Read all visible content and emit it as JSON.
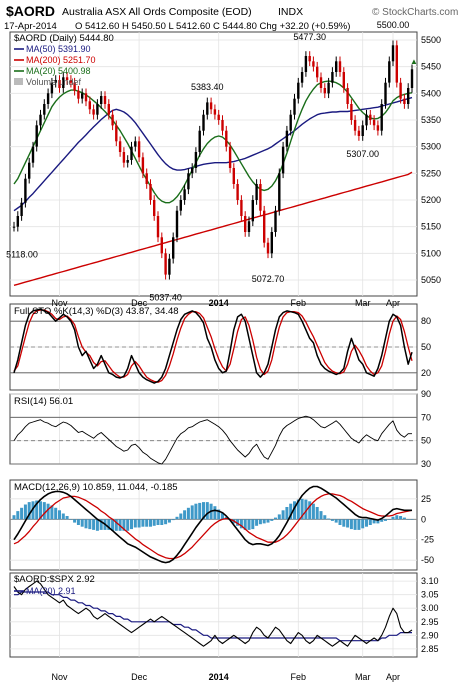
{
  "header": {
    "symbol": "$AORD",
    "name": "Australia ASX All Ords Composite (EOD)",
    "exchange": "INDX",
    "date": "17-Apr-2014",
    "ohlc": "O 5412.60  H 5450.50  L 5412.60  C 5444.80  Chg +32.20 (+0.59%)",
    "credit": "© StockCharts.com",
    "up_arrow": "▲"
  },
  "colors": {
    "price_up": "#000000",
    "price_down": "#cc0000",
    "ma50": "#1a1a80",
    "ma200": "#cc0000",
    "ma20": "#1a6e1a",
    "stoch_k": "#000000",
    "stoch_d": "#cc0000",
    "macd": "#000000",
    "macd_signal": "#cc0000",
    "histogram": "#3f99c8",
    "ratio": "#000000",
    "ratio_ma": "#1a1a80"
  },
  "x_axis": {
    "months": [
      "Nov",
      "Dec",
      "2014",
      "Feb",
      "Mar",
      "Apr"
    ]
  },
  "chart_data": [
    {
      "type": "candlestick",
      "panel": "price",
      "title": "$AORD (Daily) 5444.80",
      "legend": [
        {
          "name": "MA(50) 5391.90",
          "color": "#1a1a80"
        },
        {
          "name": "MA(200) 5251.70",
          "color": "#cc0000"
        },
        {
          "name": "MA(20) 5400.98",
          "color": "#1a6e1a"
        },
        {
          "name": "Volume undef",
          "color": "#999999"
        }
      ],
      "ylim": [
        5020,
        5515
      ],
      "yticks": [
        5050,
        5100,
        5150,
        5200,
        5250,
        5300,
        5350,
        5400,
        5450,
        5500
      ],
      "annotations": [
        {
          "label": "5118.00",
          "value": 5118
        },
        {
          "label": "5037.40",
          "value": 5037.4
        },
        {
          "label": "5383.40",
          "value": 5383.4
        },
        {
          "label": "5072.70",
          "value": 5072.7
        },
        {
          "label": "5477.30",
          "value": 5477.3
        },
        {
          "label": "5307.00",
          "value": 5307
        },
        {
          "label": "5500.00",
          "value": 5500
        }
      ],
      "close": [
        5150,
        5170,
        5195,
        5240,
        5270,
        5300,
        5340,
        5360,
        5380,
        5400,
        5420,
        5425,
        5410,
        5430,
        5425,
        5420,
        5405,
        5390,
        5400,
        5385,
        5370,
        5360,
        5380,
        5395,
        5380,
        5360,
        5340,
        5310,
        5290,
        5270,
        5275,
        5300,
        5310,
        5280,
        5250,
        5230,
        5200,
        5170,
        5130,
        5100,
        5060,
        5090,
        5130,
        5180,
        5200,
        5220,
        5250,
        5260,
        5290,
        5330,
        5360,
        5383,
        5370,
        5360,
        5350,
        5330,
        5300,
        5260,
        5230,
        5200,
        5170,
        5140,
        5160,
        5200,
        5230,
        5180,
        5120,
        5100,
        5140,
        5180,
        5250,
        5300,
        5330,
        5360,
        5390,
        5420,
        5440,
        5470,
        5460,
        5450,
        5430,
        5410,
        5400,
        5420,
        5440,
        5460,
        5440,
        5410,
        5380,
        5350,
        5330,
        5320,
        5340,
        5360,
        5350,
        5340,
        5330,
        5380,
        5420,
        5460,
        5490,
        5420,
        5390,
        5380,
        5410,
        5445
      ],
      "ma50": [
        5180,
        5185,
        5190,
        5197,
        5205,
        5212,
        5220,
        5228,
        5236,
        5244,
        5252,
        5260,
        5268,
        5276,
        5284,
        5292,
        5300,
        5308,
        5315,
        5322,
        5330,
        5337,
        5344,
        5351,
        5357,
        5363,
        5368,
        5370,
        5368,
        5365,
        5360,
        5353,
        5345,
        5335,
        5325,
        5315,
        5305,
        5295,
        5285,
        5276,
        5268,
        5262,
        5258,
        5256,
        5256,
        5257,
        5259,
        5261,
        5263,
        5265,
        5267,
        5268,
        5269,
        5270,
        5270,
        5270,
        5270,
        5271,
        5272,
        5274,
        5276,
        5278,
        5281,
        5284,
        5287,
        5290,
        5293,
        5296,
        5300,
        5305,
        5310,
        5315,
        5320,
        5325,
        5330,
        5336,
        5342,
        5347,
        5352,
        5356,
        5360,
        5362,
        5363,
        5364,
        5365,
        5365,
        5366,
        5366,
        5366,
        5367,
        5368,
        5369,
        5370,
        5371,
        5372,
        5373,
        5374,
        5376,
        5378,
        5380,
        5382,
        5384,
        5386,
        5388,
        5390,
        5392
      ],
      "ma200": [
        5040,
        5042,
        5044,
        5046,
        5048,
        5050,
        5052,
        5054,
        5056,
        5058,
        5060,
        5062,
        5064,
        5066,
        5068,
        5070,
        5072,
        5074,
        5076,
        5078,
        5080,
        5082,
        5084,
        5086,
        5088,
        5090,
        5092,
        5094,
        5096,
        5098,
        5100,
        5102,
        5104,
        5106,
        5108,
        5110,
        5112,
        5114,
        5116,
        5118,
        5120,
        5122,
        5124,
        5126,
        5128,
        5130,
        5132,
        5134,
        5136,
        5138,
        5140,
        5142,
        5144,
        5146,
        5148,
        5150,
        5152,
        5154,
        5156,
        5158,
        5160,
        5162,
        5164,
        5166,
        5168,
        5170,
        5172,
        5174,
        5176,
        5178,
        5180,
        5182,
        5184,
        5186,
        5188,
        5190,
        5192,
        5194,
        5196,
        5198,
        5200,
        5202,
        5204,
        5206,
        5208,
        5210,
        5212,
        5214,
        5216,
        5218,
        5220,
        5222,
        5224,
        5226,
        5228,
        5230,
        5232,
        5234,
        5236,
        5238,
        5240,
        5242,
        5244,
        5246,
        5248,
        5252
      ],
      "ma20": [
        5230,
        5240,
        5255,
        5270,
        5285,
        5300,
        5315,
        5330,
        5345,
        5360,
        5375,
        5385,
        5393,
        5399,
        5403,
        5406,
        5406,
        5404,
        5401,
        5397,
        5392,
        5386,
        5380,
        5373,
        5366,
        5358,
        5350,
        5340,
        5330,
        5318,
        5306,
        5292,
        5278,
        5264,
        5250,
        5238,
        5226,
        5214,
        5204,
        5198,
        5195,
        5195,
        5199,
        5206,
        5216,
        5228,
        5242,
        5256,
        5270,
        5284,
        5296,
        5306,
        5313,
        5318,
        5320,
        5318,
        5312,
        5303,
        5292,
        5280,
        5268,
        5256,
        5244,
        5234,
        5226,
        5220,
        5218,
        5220,
        5226,
        5236,
        5250,
        5268,
        5288,
        5310,
        5332,
        5352,
        5370,
        5386,
        5398,
        5408,
        5416,
        5420,
        5422,
        5423,
        5422,
        5420,
        5416,
        5410,
        5402,
        5392,
        5382,
        5372,
        5364,
        5358,
        5354,
        5352,
        5353,
        5357,
        5364,
        5374,
        5386,
        5392,
        5396,
        5398,
        5400,
        5401
      ]
    },
    {
      "type": "line",
      "panel": "stochastic",
      "title": "Full STO %K(14,3) %D(3) 43.87, 34.48",
      "ylim": [
        0,
        100
      ],
      "yticks": [
        20,
        50,
        80
      ],
      "k": [
        20,
        35,
        55,
        75,
        88,
        92,
        93,
        94,
        92,
        90,
        85,
        80,
        84,
        88,
        85,
        80,
        70,
        50,
        40,
        45,
        35,
        25,
        30,
        40,
        30,
        20,
        18,
        15,
        14,
        16,
        25,
        40,
        30,
        20,
        15,
        12,
        10,
        8,
        10,
        15,
        25,
        40,
        55,
        70,
        82,
        88,
        90,
        92,
        90,
        85,
        78,
        60,
        50,
        35,
        25,
        20,
        22,
        45,
        70,
        85,
        88,
        80,
        60,
        40,
        20,
        15,
        20,
        30,
        50,
        70,
        85,
        90,
        92,
        91,
        90,
        88,
        80,
        70,
        60,
        55,
        40,
        30,
        25,
        22,
        20,
        18,
        20,
        25,
        45,
        60,
        48,
        35,
        30,
        20,
        18,
        16,
        25,
        40,
        60,
        80,
        88,
        85,
        75,
        50,
        30,
        44
      ],
      "d": [
        22,
        28,
        45,
        62,
        78,
        88,
        92,
        93,
        93,
        91,
        88,
        83,
        82,
        85,
        86,
        82,
        76,
        62,
        50,
        44,
        40,
        32,
        28,
        33,
        34,
        28,
        22,
        18,
        15,
        15,
        18,
        28,
        33,
        28,
        21,
        15,
        12,
        10,
        9,
        11,
        17,
        28,
        42,
        58,
        72,
        83,
        88,
        91,
        91,
        89,
        84,
        73,
        62,
        48,
        36,
        27,
        22,
        30,
        48,
        68,
        82,
        85,
        75,
        58,
        38,
        24,
        18,
        22,
        35,
        55,
        73,
        85,
        90,
        91,
        91,
        90,
        86,
        79,
        70,
        62,
        52,
        42,
        32,
        26,
        22,
        20,
        19,
        21,
        30,
        45,
        52,
        46,
        38,
        28,
        22,
        18,
        20,
        28,
        45,
        65,
        80,
        86,
        82,
        68,
        50,
        34
      ]
    },
    {
      "type": "line",
      "panel": "rsi",
      "title": "RSI(14) 56.01",
      "ylim": [
        30,
        90
      ],
      "yticks": [
        30,
        50,
        70,
        90
      ],
      "values": [
        50,
        55,
        58,
        62,
        65,
        66,
        67,
        68,
        66,
        65,
        63,
        62,
        64,
        66,
        65,
        63,
        60,
        57,
        58,
        56,
        54,
        52,
        55,
        57,
        54,
        51,
        48,
        45,
        43,
        41,
        42,
        46,
        47,
        44,
        40,
        38,
        35,
        33,
        31,
        30,
        34,
        40,
        46,
        52,
        56,
        58,
        61,
        62,
        64,
        66,
        67,
        68,
        66,
        64,
        62,
        59,
        55,
        50,
        46,
        42,
        39,
        36,
        39,
        44,
        47,
        41,
        36,
        34,
        40,
        46,
        54,
        60,
        63,
        65,
        67,
        69,
        70,
        71,
        70,
        68,
        65,
        62,
        61,
        63,
        65,
        67,
        64,
        60,
        56,
        52,
        50,
        48,
        52,
        55,
        53,
        51,
        50,
        56,
        60,
        64,
        67,
        59,
        55,
        53,
        56,
        56
      ]
    },
    {
      "type": "line",
      "panel": "macd",
      "title": "MACD(12,26,9) 10.859, 11.044, -0.185",
      "ylim": [
        -62,
        48
      ],
      "yticks": [
        -50,
        -25,
        0,
        25
      ],
      "macd": [
        -25,
        -18,
        -10,
        -2,
        6,
        13,
        19,
        24,
        28,
        31,
        33,
        34,
        34,
        33,
        31,
        28,
        24,
        20,
        16,
        12,
        8,
        4,
        0,
        -3,
        -6,
        -10,
        -14,
        -18,
        -22,
        -26,
        -30,
        -32,
        -34,
        -37,
        -40,
        -43,
        -46,
        -48,
        -50,
        -52,
        -53,
        -52,
        -49,
        -44,
        -38,
        -31,
        -24,
        -17,
        -10,
        -4,
        2,
        7,
        10,
        11,
        10,
        8,
        4,
        -1,
        -7,
        -13,
        -19,
        -25,
        -29,
        -31,
        -30,
        -30,
        -31,
        -32,
        -30,
        -26,
        -20,
        -12,
        -4,
        5,
        14,
        22,
        29,
        34,
        38,
        40,
        40,
        38,
        35,
        32,
        29,
        26,
        22,
        18,
        14,
        10,
        6,
        3,
        2,
        2,
        1,
        0,
        -1,
        1,
        4,
        8,
        12,
        13,
        12,
        11,
        11,
        11
      ],
      "signal": [
        -30,
        -28,
        -24,
        -20,
        -15,
        -9,
        -4,
        2,
        7,
        12,
        16,
        20,
        23,
        26,
        27,
        28,
        28,
        27,
        25,
        23,
        20,
        17,
        14,
        10,
        7,
        3,
        0,
        -4,
        -8,
        -12,
        -16,
        -20,
        -24,
        -27,
        -31,
        -34,
        -37,
        -40,
        -43,
        -45,
        -47,
        -48,
        -48,
        -47,
        -45,
        -42,
        -38,
        -34,
        -29,
        -24,
        -19,
        -14,
        -9,
        -5,
        -2,
        0,
        1,
        0,
        -2,
        -5,
        -8,
        -12,
        -16,
        -19,
        -22,
        -24,
        -26,
        -28,
        -28,
        -28,
        -26,
        -23,
        -19,
        -14,
        -8,
        -2,
        4,
        10,
        16,
        21,
        25,
        28,
        30,
        31,
        31,
        30,
        29,
        27,
        24,
        22,
        19,
        16,
        13,
        11,
        9,
        7,
        5,
        4,
        4,
        4,
        5,
        7,
        8,
        9,
        10,
        11
      ],
      "histogram": [
        5,
        10,
        14,
        18,
        21,
        22,
        23,
        22,
        21,
        19,
        17,
        14,
        11,
        7,
        4,
        0,
        -4,
        -7,
        -9,
        -11,
        -12,
        -13,
        -14,
        -13,
        -13,
        -13,
        -14,
        -14,
        -14,
        -14,
        -14,
        -12,
        -10,
        -10,
        -9,
        -9,
        -9,
        -8,
        -7,
        -7,
        -6,
        -4,
        -1,
        3,
        7,
        11,
        14,
        17,
        19,
        20,
        21,
        21,
        19,
        16,
        12,
        8,
        3,
        -1,
        -5,
        -8,
        -11,
        -13,
        -13,
        -12,
        -8,
        -6,
        -5,
        -4,
        -2,
        2,
        6,
        11,
        15,
        19,
        22,
        24,
        25,
        24,
        22,
        19,
        15,
        10,
        5,
        1,
        -2,
        -4,
        -7,
        -9,
        -10,
        -12,
        -13,
        -13,
        -11,
        -9,
        -7,
        -5,
        -5,
        -3,
        -2,
        0,
        3,
        5,
        4,
        2,
        0,
        0
      ]
    },
    {
      "type": "line",
      "panel": "ratio",
      "title": "$AORD:$SPX 2.92",
      "legend": [
        {
          "name": "MA(20) 2.91",
          "color": "#1a1a80"
        }
      ],
      "ylim": [
        2.82,
        3.13
      ],
      "yticks": [
        2.85,
        2.9,
        2.95,
        3.0,
        3.05,
        3.1
      ],
      "values": [
        3.08,
        3.06,
        3.05,
        3.07,
        3.08,
        3.09,
        3.1,
        3.09,
        3.07,
        3.05,
        3.04,
        3.03,
        3.02,
        3.03,
        3.01,
        3.0,
        2.99,
        2.98,
        2.99,
        3.0,
        2.99,
        2.97,
        2.96,
        2.97,
        2.98,
        2.97,
        2.96,
        2.95,
        2.94,
        2.93,
        2.92,
        2.91,
        2.92,
        2.93,
        2.94,
        2.95,
        2.96,
        2.95,
        2.96,
        2.97,
        2.96,
        2.95,
        2.94,
        2.93,
        2.92,
        2.91,
        2.9,
        2.89,
        2.88,
        2.87,
        2.86,
        2.87,
        2.88,
        2.9,
        2.88,
        2.87,
        2.88,
        2.89,
        2.9,
        2.89,
        2.88,
        2.87,
        2.88,
        2.91,
        2.93,
        2.92,
        2.9,
        2.89,
        2.91,
        2.93,
        2.92,
        2.9,
        2.88,
        2.87,
        2.89,
        2.91,
        2.9,
        2.88,
        2.87,
        2.88,
        2.9,
        2.89,
        2.88,
        2.87,
        2.86,
        2.87,
        2.88,
        2.87,
        2.86,
        2.88,
        2.9,
        2.89,
        2.88,
        2.87,
        2.88,
        2.89,
        2.88,
        2.9,
        2.93,
        2.97,
        3.0,
        2.98,
        2.93,
        2.91,
        2.91,
        2.92
      ],
      "ma": [
        3.05,
        3.05,
        3.06,
        3.06,
        3.06,
        3.06,
        3.06,
        3.06,
        3.06,
        3.06,
        3.05,
        3.05,
        3.05,
        3.04,
        3.04,
        3.03,
        3.03,
        3.02,
        3.02,
        3.01,
        3.01,
        3.0,
        3.0,
        2.99,
        2.99,
        2.98,
        2.98,
        2.97,
        2.97,
        2.96,
        2.96,
        2.95,
        2.95,
        2.95,
        2.95,
        2.95,
        2.95,
        2.95,
        2.95,
        2.95,
        2.95,
        2.95,
        2.94,
        2.94,
        2.94,
        2.93,
        2.93,
        2.92,
        2.92,
        2.91,
        2.9,
        2.9,
        2.89,
        2.89,
        2.89,
        2.89,
        2.89,
        2.89,
        2.89,
        2.89,
        2.89,
        2.89,
        2.89,
        2.89,
        2.89,
        2.89,
        2.89,
        2.89,
        2.89,
        2.89,
        2.89,
        2.89,
        2.89,
        2.89,
        2.89,
        2.89,
        2.89,
        2.89,
        2.89,
        2.89,
        2.89,
        2.89,
        2.89,
        2.89,
        2.89,
        2.89,
        2.88,
        2.88,
        2.88,
        2.88,
        2.88,
        2.88,
        2.88,
        2.88,
        2.88,
        2.88,
        2.88,
        2.89,
        2.89,
        2.9,
        2.9,
        2.9,
        2.91,
        2.91,
        2.91,
        2.91
      ]
    }
  ]
}
